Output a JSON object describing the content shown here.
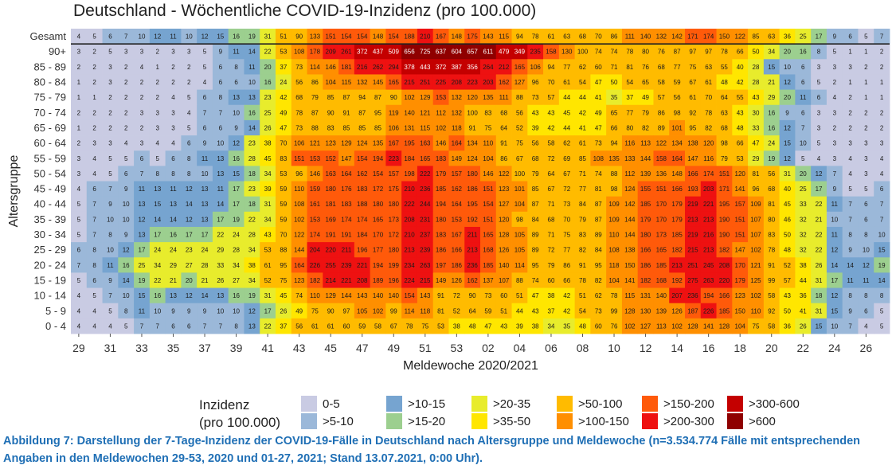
{
  "chart_data": {
    "type": "heatmap",
    "title": "Deutschland - Wöchentliche COVID-19-Inzidenz (pro 100.000)",
    "xlabel": "Meldewoche 2020/2021",
    "ylabel": "Altersgruppe",
    "x_tick_labels": [
      "29",
      "31",
      "33",
      "35",
      "37",
      "39",
      "41",
      "43",
      "45",
      "47",
      "49",
      "51",
      "53",
      "02",
      "04",
      "06",
      "08",
      "10",
      "12",
      "14",
      "16",
      "18",
      "20",
      "22",
      "24",
      "26"
    ],
    "weeks": [
      "29",
      "30",
      "31",
      "32",
      "33",
      "34",
      "35",
      "36",
      "37",
      "38",
      "39",
      "40",
      "41",
      "42",
      "43",
      "44",
      "45",
      "46",
      "47",
      "48",
      "49",
      "50",
      "51",
      "52",
      "53",
      "01",
      "02",
      "03",
      "04",
      "05",
      "06",
      "07",
      "08",
      "09",
      "10",
      "11",
      "12",
      "13",
      "14",
      "15",
      "16",
      "17",
      "18",
      "19",
      "20",
      "21",
      "22",
      "23",
      "24",
      "25",
      "26",
      "27"
    ],
    "rows": [
      {
        "label": "Gesamt",
        "values": [
          4,
          5,
          6,
          7,
          10,
          12,
          11,
          10,
          12,
          15,
          16,
          19,
          31,
          51,
          90,
          133,
          151,
          154,
          154,
          148,
          154,
          188,
          210,
          167,
          148,
          175,
          143,
          115,
          94,
          78,
          61,
          63,
          68,
          70,
          86,
          111,
          140,
          132,
          142,
          171,
          174,
          150,
          122,
          85,
          63,
          36,
          25,
          17,
          9,
          6,
          5,
          7
        ]
      },
      {
        "label": "90+",
        "values": [
          3,
          2,
          5,
          3,
          3,
          2,
          3,
          3,
          5,
          9,
          11,
          14,
          22,
          53,
          108,
          178,
          209,
          261,
          372,
          437,
          509,
          656,
          725,
          637,
          604,
          657,
          611,
          479,
          349,
          235,
          158,
          130,
          100,
          74,
          74,
          78,
          80,
          76,
          87,
          97,
          97,
          78,
          66,
          50,
          34,
          20,
          16,
          8,
          5,
          1,
          1,
          2
        ]
      },
      {
        "label": "85 - 89",
        "values": [
          2,
          2,
          3,
          2,
          4,
          1,
          2,
          2,
          5,
          6,
          8,
          11,
          20,
          37,
          73,
          114,
          146,
          181,
          216,
          262,
          294,
          378,
          443,
          372,
          387,
          356,
          264,
          212,
          165,
          106,
          94,
          77,
          62,
          60,
          71,
          81,
          76,
          68,
          77,
          75,
          63,
          55,
          40,
          28,
          15,
          10,
          6,
          3,
          3,
          3,
          2,
          2
        ]
      },
      {
        "label": "80 - 84",
        "values": [
          1,
          2,
          3,
          2,
          2,
          2,
          2,
          2,
          4,
          6,
          6,
          10,
          16,
          24,
          56,
          86,
          104,
          115,
          132,
          145,
          165,
          215,
          251,
          225,
          208,
          223,
          203,
          162,
          127,
          96,
          70,
          61,
          54,
          47,
          50,
          54,
          65,
          58,
          59,
          67,
          61,
          48,
          42,
          28,
          21,
          12,
          6,
          5,
          2,
          1,
          1,
          1
        ]
      },
      {
        "label": "75 - 79",
        "values": [
          1,
          1,
          2,
          2,
          2,
          2,
          4,
          5,
          6,
          8,
          13,
          13,
          23,
          42,
          68,
          79,
          85,
          87,
          94,
          87,
          90,
          102,
          129,
          153,
          132,
          120,
          135,
          111,
          88,
          73,
          57,
          44,
          44,
          41,
          35,
          37,
          49,
          57,
          56,
          61,
          70,
          64,
          55,
          43,
          29,
          20,
          11,
          6,
          4,
          2,
          1,
          1
        ]
      },
      {
        "label": "70 - 74",
        "values": [
          2,
          2,
          2,
          2,
          3,
          3,
          3,
          4,
          7,
          7,
          10,
          16,
          25,
          49,
          78,
          87,
          90,
          91,
          87,
          95,
          119,
          140,
          121,
          112,
          132,
          100,
          83,
          68,
          56,
          43,
          43,
          45,
          42,
          49,
          65,
          77,
          79,
          86,
          98,
          92,
          78,
          63,
          43,
          30,
          16,
          9,
          6,
          3,
          3,
          2,
          2,
          2
        ]
      },
      {
        "label": "65 - 69",
        "values": [
          1,
          2,
          2,
          2,
          2,
          3,
          3,
          5,
          6,
          6,
          9,
          14,
          26,
          47,
          73,
          88,
          83,
          85,
          85,
          85,
          106,
          131,
          115,
          102,
          118,
          91,
          75,
          64,
          52,
          39,
          42,
          44,
          41,
          47,
          66,
          80,
          82,
          89,
          101,
          95,
          82,
          68,
          48,
          33,
          16,
          12,
          7,
          3,
          2,
          2,
          2,
          2
        ]
      },
      {
        "label": "60 - 64",
        "values": [
          2,
          3,
          3,
          4,
          3,
          4,
          4,
          6,
          9,
          10,
          12,
          23,
          38,
          70,
          106,
          121,
          123,
          129,
          124,
          135,
          167,
          195,
          163,
          146,
          164,
          134,
          110,
          91,
          75,
          56,
          58,
          62,
          61,
          73,
          94,
          116,
          113,
          122,
          134,
          138,
          120,
          98,
          66,
          47,
          24,
          15,
          10,
          5,
          3,
          3,
          3,
          3
        ]
      },
      {
        "label": "55 - 59",
        "values": [
          3,
          4,
          5,
          5,
          6,
          5,
          6,
          8,
          11,
          13,
          16,
          28,
          45,
          83,
          151,
          153,
          152,
          147,
          154,
          194,
          223,
          184,
          165,
          183,
          149,
          124,
          104,
          86,
          67,
          68,
          72,
          69,
          85,
          108,
          135,
          133,
          144,
          158,
          164,
          147,
          116,
          79,
          53,
          29,
          19,
          12,
          5,
          4,
          3,
          4,
          3,
          4
        ]
      },
      {
        "label": "50 - 54",
        "values": [
          3,
          4,
          5,
          6,
          7,
          8,
          8,
          8,
          10,
          13,
          15,
          18,
          34,
          53,
          96,
          146,
          163,
          164,
          162,
          154,
          157,
          198,
          222,
          179,
          157,
          180,
          146,
          122,
          100,
          79,
          64,
          67,
          71,
          74,
          88,
          112,
          139,
          136,
          148,
          166,
          174,
          151,
          120,
          81,
          56,
          31,
          20,
          12,
          7,
          4,
          3,
          4
        ]
      },
      {
        "label": "45 - 49",
        "values": [
          4,
          6,
          7,
          9,
          11,
          13,
          11,
          12,
          13,
          11,
          17,
          23,
          39,
          59,
          110,
          159,
          180,
          176,
          183,
          172,
          175,
          210,
          236,
          185,
          162,
          186,
          151,
          123,
          101,
          85,
          67,
          72,
          77,
          81,
          98,
          124,
          155,
          151,
          166,
          193,
          203,
          171,
          141,
          96,
          68,
          40,
          25,
          17,
          9,
          5,
          5,
          6
        ]
      },
      {
        "label": "40 - 44",
        "values": [
          5,
          7,
          9,
          10,
          13,
          15,
          13,
          14,
          13,
          14,
          17,
          18,
          31,
          59,
          108,
          161,
          181,
          183,
          188,
          180,
          180,
          222,
          244,
          194,
          164,
          195,
          154,
          127,
          104,
          87,
          71,
          73,
          84,
          87,
          109,
          142,
          185,
          170,
          179,
          219,
          221,
          195,
          157,
          109,
          81,
          45,
          33,
          22,
          11,
          7,
          6,
          7
        ]
      },
      {
        "label": "35 - 39",
        "values": [
          5,
          7,
          10,
          10,
          12,
          14,
          14,
          12,
          13,
          17,
          19,
          22,
          34,
          59,
          102,
          153,
          169,
          174,
          174,
          165,
          173,
          208,
          231,
          180,
          153,
          192,
          151,
          120,
          98,
          84,
          68,
          70,
          79,
          87,
          109,
          144,
          179,
          170,
          179,
          213,
          213,
          190,
          151,
          107,
          80,
          46,
          32,
          21,
          10,
          7,
          6,
          7
        ]
      },
      {
        "label": "30 - 34",
        "values": [
          5,
          7,
          8,
          9,
          13,
          17,
          16,
          17,
          17,
          22,
          24,
          28,
          43,
          70,
          122,
          174,
          191,
          191,
          184,
          170,
          172,
          210,
          237,
          183,
          167,
          211,
          165,
          128,
          105,
          89,
          71,
          75,
          83,
          89,
          110,
          144,
          180,
          173,
          185,
          219,
          216,
          190,
          151,
          107,
          83,
          50,
          32,
          22,
          11,
          8,
          8,
          10
        ]
      },
      {
        "label": "25 - 29",
        "values": [
          6,
          8,
          10,
          12,
          17,
          24,
          24,
          23,
          24,
          29,
          28,
          34,
          53,
          88,
          144,
          204,
          220,
          211,
          196,
          177,
          180,
          213,
          239,
          186,
          166,
          213,
          168,
          126,
          105,
          89,
          72,
          77,
          82,
          84,
          108,
          138,
          166,
          165,
          182,
          215,
          213,
          182,
          147,
          102,
          78,
          48,
          32,
          22,
          12,
          9,
          10,
          15
        ]
      },
      {
        "label": "20 - 24",
        "values": [
          7,
          8,
          11,
          16,
          25,
          34,
          29,
          27,
          28,
          33,
          34,
          38,
          61,
          95,
          164,
          226,
          255,
          239,
          221,
          194,
          199,
          234,
          263,
          197,
          186,
          236,
          185,
          140,
          114,
          95,
          79,
          86,
          91,
          95,
          118,
          150,
          186,
          185,
          213,
          251,
          245,
          208,
          170,
          121,
          91,
          52,
          38,
          26,
          14,
          14,
          12,
          19
        ]
      },
      {
        "label": "15 - 19",
        "values": [
          5,
          6,
          9,
          14,
          19,
          22,
          21,
          20,
          21,
          26,
          27,
          34,
          52,
          75,
          123,
          182,
          214,
          221,
          208,
          189,
          196,
          224,
          215,
          149,
          126,
          162,
          137,
          107,
          88,
          74,
          60,
          66,
          78,
          82,
          104,
          141,
          182,
          168,
          192,
          275,
          263,
          220,
          179,
          125,
          99,
          57,
          44,
          31,
          17,
          11,
          11,
          14
        ]
      },
      {
        "label": "10 - 14",
        "values": [
          4,
          5,
          7,
          10,
          15,
          16,
          13,
          12,
          14,
          13,
          16,
          19,
          31,
          45,
          74,
          110,
          129,
          144,
          143,
          140,
          140,
          154,
          143,
          91,
          72,
          90,
          73,
          60,
          51,
          47,
          38,
          42,
          51,
          62,
          78,
          115,
          131,
          140,
          207,
          236,
          194,
          166,
          123,
          102,
          58,
          43,
          36,
          18,
          12,
          8,
          8,
          8
        ]
      },
      {
        "label": "5 - 9",
        "values": [
          4,
          4,
          5,
          8,
          11,
          10,
          9,
          9,
          9,
          10,
          10,
          12,
          17,
          26,
          49,
          75,
          90,
          97,
          105,
          102,
          99,
          114,
          118,
          81,
          52,
          64,
          59,
          51,
          44,
          43,
          37,
          42,
          54,
          73,
          99,
          128,
          130,
          139,
          126,
          187,
          226,
          185,
          150,
          110,
          92,
          50,
          41,
          31,
          15,
          9,
          6,
          5
        ]
      },
      {
        "label": "0 - 4",
        "values": [
          4,
          4,
          4,
          5,
          7,
          7,
          6,
          6,
          7,
          7,
          8,
          13,
          22,
          37,
          56,
          61,
          61,
          60,
          59,
          58,
          67,
          78,
          75,
          53,
          38,
          48,
          47,
          43,
          39,
          38,
          34,
          35,
          48,
          60,
          76,
          102,
          127,
          113,
          102,
          128,
          141,
          128,
          104,
          75,
          58,
          36,
          26,
          15,
          10,
          7,
          4,
          5
        ]
      }
    ],
    "legend": {
      "title_line1": "Inzidenz",
      "title_line2": "(pro 100.000)",
      "placement": "bottom",
      "items": [
        {
          "label": "0-5",
          "color": "#c9cbe3"
        },
        {
          "label": ">5-10",
          "color": "#9bb8d9"
        },
        {
          "label": ">10-15",
          "color": "#76a4d0"
        },
        {
          "label": ">15-20",
          "color": "#9ccf8f"
        },
        {
          "label": ">20-35",
          "color": "#e8ec2c"
        },
        {
          "label": ">35-50",
          "color": "#ffe600"
        },
        {
          "label": ">50-100",
          "color": "#ffbb00"
        },
        {
          "label": ">100-150",
          "color": "#ff8f00"
        },
        {
          "label": ">150-200",
          "color": "#ff5a0a"
        },
        {
          "label": ">200-300",
          "color": "#ee1111"
        },
        {
          "label": ">300-600",
          "color": "#c40000"
        },
        {
          "label": ">600",
          "color": "#8f0000"
        }
      ]
    }
  },
  "caption": "Abbildung 7: Darstellung der 7-Tage-Inzidenz der COVID-19-Fälle in Deutschland nach Altersgruppe und Meldewoche (n=3.534.774 Fälle mit entsprechenden Angaben in den Meldewochen 29-53, 2020 und 01-27, 2021; Stand 13.07.2021, 0:00 Uhr)."
}
